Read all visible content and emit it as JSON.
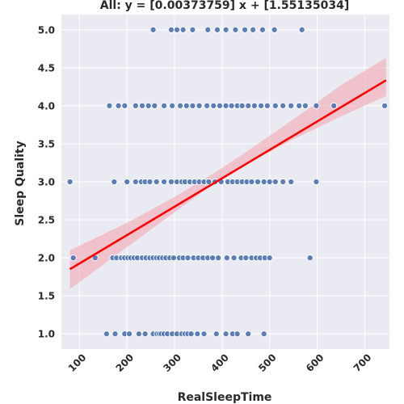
{
  "chart_data": {
    "type": "scatter",
    "title": "All: y = [0.00373759] x + [1.55135034]",
    "xlabel": "RealSleepTime",
    "ylabel": "Sleep Quality",
    "xlim": [
      62,
      752
    ],
    "ylim": [
      0.8,
      5.2
    ],
    "x_ticks": [
      100,
      200,
      300,
      400,
      500,
      600,
      700
    ],
    "y_ticks": [
      1.0,
      1.5,
      2.0,
      2.5,
      3.0,
      3.5,
      4.0,
      4.5,
      5.0
    ],
    "y_tick_labels": [
      "1.0",
      "1.5",
      "2.0",
      "2.5",
      "3.0",
      "3.5",
      "4.0",
      "4.5",
      "5.0"
    ],
    "grid": true,
    "colors": {
      "background": "#eaeaf2",
      "grid": "#ffffff",
      "points": "#4c72b0",
      "point_edge": "#ffffff",
      "line": "#ff0000",
      "band": "#f4a6b0"
    },
    "regression": {
      "slope": 0.00373759,
      "intercept": 1.55135034,
      "x_range": [
        80,
        745
      ],
      "ci_band": [
        [
          80,
          1.59,
          2.1
        ],
        [
          200,
          2.14,
          2.46
        ],
        [
          300,
          2.6,
          2.8
        ],
        [
          390,
          3.01,
          3.14
        ],
        [
          450,
          3.23,
          3.39
        ],
        [
          550,
          3.56,
          3.82
        ],
        [
          650,
          3.86,
          4.27
        ],
        [
          745,
          4.13,
          4.63
        ]
      ]
    },
    "series": [
      {
        "values": [
          [
            157,
            1
          ],
          [
            175,
            1
          ],
          [
            195,
            1
          ],
          [
            205,
            1
          ],
          [
            225,
            1
          ],
          [
            238,
            1
          ],
          [
            255,
            1
          ],
          [
            263,
            1
          ],
          [
            268,
            1
          ],
          [
            272,
            1
          ],
          [
            278,
            1
          ],
          [
            285,
            1
          ],
          [
            295,
            1
          ],
          [
            305,
            1
          ],
          [
            315,
            1
          ],
          [
            322,
            1
          ],
          [
            328,
            1
          ],
          [
            335,
            1
          ],
          [
            348,
            1
          ],
          [
            362,
            1
          ],
          [
            388,
            1
          ],
          [
            408,
            1
          ],
          [
            422,
            1
          ],
          [
            432,
            1
          ],
          [
            455,
            1
          ],
          [
            488,
            1
          ],
          [
            133,
            2
          ],
          [
            170,
            2
          ],
          [
            178,
            2
          ],
          [
            188,
            2
          ],
          [
            195,
            2
          ],
          [
            202,
            2
          ],
          [
            208,
            2
          ],
          [
            215,
            2
          ],
          [
            222,
            2
          ],
          [
            232,
            2
          ],
          [
            240,
            2
          ],
          [
            248,
            2
          ],
          [
            255,
            2
          ],
          [
            262,
            2
          ],
          [
            268,
            2
          ],
          [
            275,
            2
          ],
          [
            282,
            2
          ],
          [
            290,
            2
          ],
          [
            298,
            2
          ],
          [
            310,
            2
          ],
          [
            318,
            2
          ],
          [
            328,
            2
          ],
          [
            340,
            2
          ],
          [
            350,
            2
          ],
          [
            360,
            2
          ],
          [
            370,
            2
          ],
          [
            380,
            2
          ],
          [
            392,
            2
          ],
          [
            410,
            2
          ],
          [
            425,
            2
          ],
          [
            440,
            2
          ],
          [
            450,
            2
          ],
          [
            462,
            2
          ],
          [
            472,
            2
          ],
          [
            480,
            2
          ],
          [
            490,
            2
          ],
          [
            500,
            2
          ],
          [
            585,
            2
          ],
          [
            87,
            2
          ],
          [
            80,
            3
          ],
          [
            173,
            3
          ],
          [
            200,
            3
          ],
          [
            218,
            3
          ],
          [
            230,
            3
          ],
          [
            238,
            3
          ],
          [
            248,
            3
          ],
          [
            262,
            3
          ],
          [
            278,
            3
          ],
          [
            293,
            3
          ],
          [
            305,
            3
          ],
          [
            315,
            3
          ],
          [
            322,
            3
          ],
          [
            332,
            3
          ],
          [
            342,
            3
          ],
          [
            352,
            3
          ],
          [
            362,
            3
          ],
          [
            372,
            3
          ],
          [
            385,
            3
          ],
          [
            398,
            3
          ],
          [
            412,
            3
          ],
          [
            422,
            3
          ],
          [
            432,
            3
          ],
          [
            442,
            3
          ],
          [
            452,
            3
          ],
          [
            462,
            3
          ],
          [
            475,
            3
          ],
          [
            488,
            3
          ],
          [
            500,
            3
          ],
          [
            512,
            3
          ],
          [
            528,
            3
          ],
          [
            545,
            3
          ],
          [
            598,
            3
          ],
          [
            163,
            4
          ],
          [
            182,
            4
          ],
          [
            195,
            4
          ],
          [
            218,
            4
          ],
          [
            232,
            4
          ],
          [
            245,
            4
          ],
          [
            258,
            4
          ],
          [
            278,
            4
          ],
          [
            295,
            4
          ],
          [
            312,
            4
          ],
          [
            325,
            4
          ],
          [
            338,
            4
          ],
          [
            352,
            4
          ],
          [
            368,
            4
          ],
          [
            382,
            4
          ],
          [
            395,
            4
          ],
          [
            408,
            4
          ],
          [
            420,
            4
          ],
          [
            432,
            4
          ],
          [
            442,
            4
          ],
          [
            455,
            4
          ],
          [
            468,
            4
          ],
          [
            482,
            4
          ],
          [
            495,
            4
          ],
          [
            512,
            4
          ],
          [
            528,
            4
          ],
          [
            545,
            4
          ],
          [
            562,
            4
          ],
          [
            575,
            4
          ],
          [
            598,
            4
          ],
          [
            635,
            4
          ],
          [
            742,
            4
          ],
          [
            255,
            5
          ],
          [
            293,
            5
          ],
          [
            305,
            5
          ],
          [
            318,
            5
          ],
          [
            338,
            5
          ],
          [
            370,
            5
          ],
          [
            390,
            5
          ],
          [
            408,
            5
          ],
          [
            428,
            5
          ],
          [
            448,
            5
          ],
          [
            465,
            5
          ],
          [
            485,
            5
          ],
          [
            510,
            5
          ],
          [
            568,
            5
          ]
        ]
      }
    ]
  }
}
